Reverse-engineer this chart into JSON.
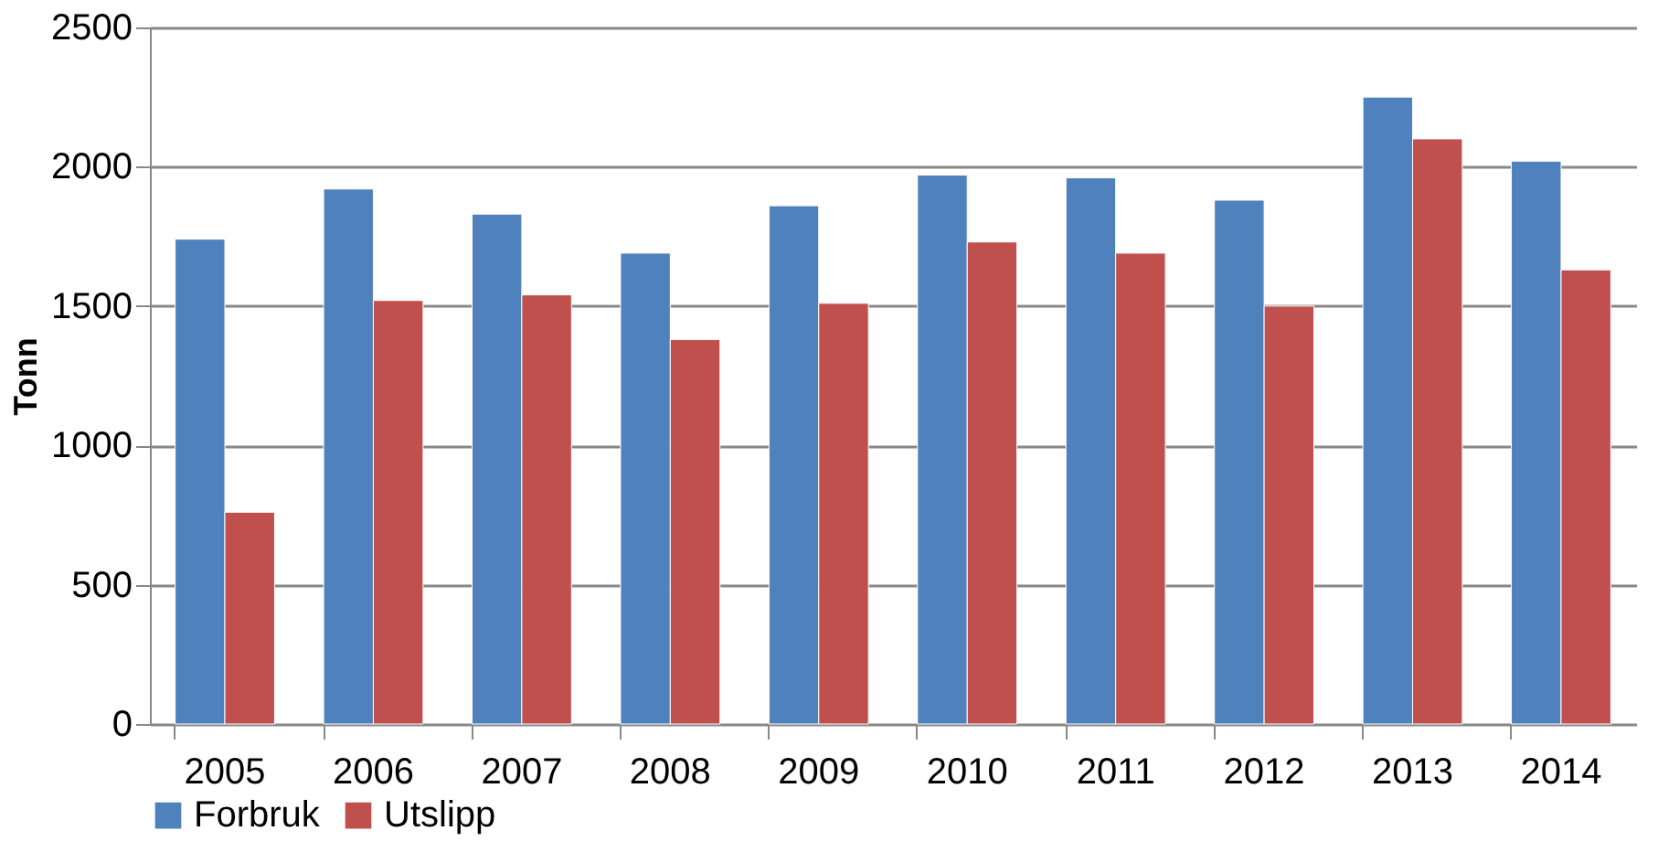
{
  "chart_data": {
    "type": "bar",
    "ylabel": "Tonn",
    "categories": [
      "2005",
      "2006",
      "2007",
      "2008",
      "2009",
      "2010",
      "2011",
      "2012",
      "2013",
      "2014"
    ],
    "series": [
      {
        "name": "Forbruk",
        "color": "#4f81bd",
        "values": [
          1740,
          1920,
          1830,
          1690,
          1860,
          1970,
          1960,
          1880,
          2250,
          2020
        ]
      },
      {
        "name": "Utslipp",
        "color": "#c0504d",
        "values": [
          760,
          1520,
          1540,
          1380,
          1510,
          1730,
          1690,
          1500,
          2100,
          1630
        ]
      }
    ],
    "ylim": [
      0,
      2500
    ],
    "yticks": [
      0,
      500,
      1000,
      1500,
      2000,
      2500
    ],
    "grid": "y",
    "legend": "bottom"
  }
}
